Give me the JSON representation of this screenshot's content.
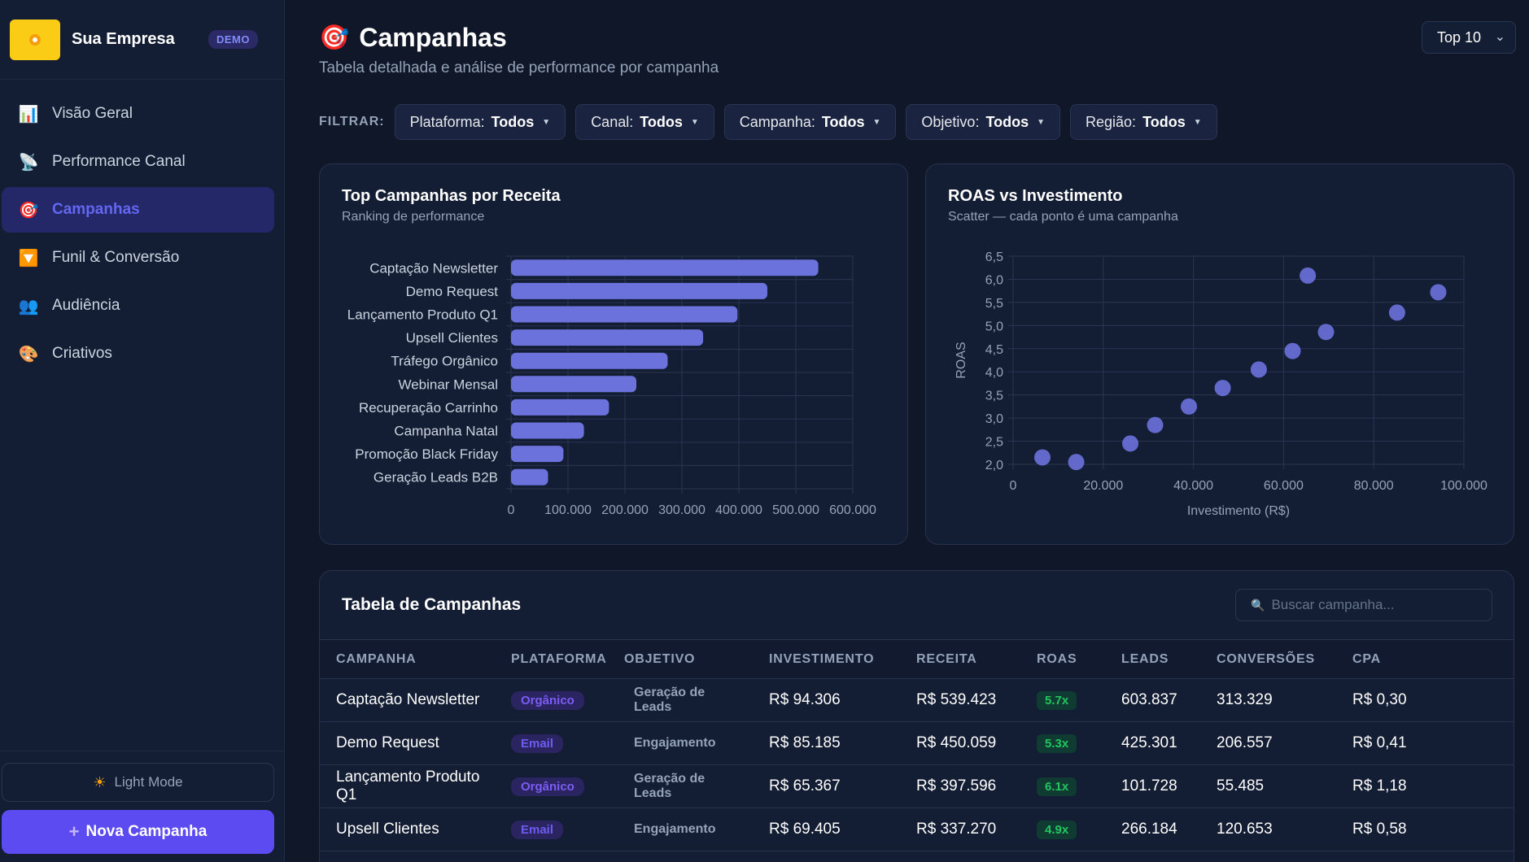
{
  "sidebar": {
    "brand_name": "Sua Empresa",
    "brand_badge": "DEMO",
    "items": [
      {
        "icon": "📊",
        "label": "Visão Geral"
      },
      {
        "icon": "📡",
        "label": "Performance Canal"
      },
      {
        "icon": "🎯",
        "label": "Campanhas"
      },
      {
        "icon": "🔽",
        "label": "Funil & Conversão"
      },
      {
        "icon": "👥",
        "label": "Audiência"
      },
      {
        "icon": "🎨",
        "label": "Criativos"
      }
    ],
    "light_mode_label": "Light Mode",
    "new_campaign_label": "Nova Campanha"
  },
  "header": {
    "icon": "🎯",
    "title": "Campanhas",
    "subtitle": "Tabela detalhada e análise de performance por campanha",
    "top_select": "Top 10"
  },
  "filters": {
    "label": "FILTRAR:",
    "chips": [
      {
        "key": "Plataforma:",
        "value": "Todos"
      },
      {
        "key": "Canal:",
        "value": "Todos"
      },
      {
        "key": "Campanha:",
        "value": "Todos"
      },
      {
        "key": "Objetivo:",
        "value": "Todos"
      },
      {
        "key": "Região:",
        "value": "Todos"
      }
    ]
  },
  "chart_data": [
    {
      "type": "bar",
      "orientation": "horizontal",
      "title": "Top Campanhas por Receita",
      "subtitle": "Ranking de performance",
      "categories": [
        "Captação Newsletter",
        "Demo Request",
        "Lançamento Produto Q1",
        "Upsell Clientes",
        "Tráfego Orgânico",
        "Webinar Mensal",
        "Recuperação Carrinho",
        "Campanha Natal",
        "Promoção Black Friday",
        "Geração Leads B2B"
      ],
      "values": [
        539423,
        450059,
        397596,
        337270,
        275000,
        220000,
        172000,
        128000,
        92000,
        65000
      ],
      "xlim": [
        0,
        600000
      ],
      "xticks": [
        "0",
        "100.000",
        "200.000",
        "300.000",
        "400.000",
        "500.000",
        "600.000"
      ],
      "color": "#6b72dc",
      "grid": true
    },
    {
      "type": "scatter",
      "title": "ROAS vs Investimento",
      "subtitle": "Scatter — cada ponto é uma campanha",
      "xlabel": "Investimento (R$)",
      "ylabel": "ROAS",
      "xlim": [
        0,
        100000
      ],
      "ylim": [
        2.0,
        6.5
      ],
      "xticks": [
        "0",
        "20.000",
        "40.000",
        "60.000",
        "80.000",
        "100.000"
      ],
      "yticks": [
        "2,0",
        "2,5",
        "3,0",
        "3,5",
        "4,0",
        "4,5",
        "5,0",
        "5,5",
        "6,0",
        "6,5"
      ],
      "points": [
        {
          "x": 6500,
          "y": 2.15
        },
        {
          "x": 14000,
          "y": 2.05
        },
        {
          "x": 26000,
          "y": 2.45
        },
        {
          "x": 31500,
          "y": 2.85
        },
        {
          "x": 39000,
          "y": 3.25
        },
        {
          "x": 46500,
          "y": 3.65
        },
        {
          "x": 54500,
          "y": 4.05
        },
        {
          "x": 62000,
          "y": 4.45
        },
        {
          "x": 65367,
          "y": 6.08
        },
        {
          "x": 69405,
          "y": 4.86
        },
        {
          "x": 85185,
          "y": 5.28
        },
        {
          "x": 94306,
          "y": 5.72
        }
      ],
      "color": "#6b72dc",
      "grid": true
    }
  ],
  "table": {
    "title": "Tabela de Campanhas",
    "search_placeholder": "Buscar campanha...",
    "columns": [
      "CAMPANHA",
      "PLATAFORMA",
      "OBJETIVO",
      "INVESTIMENTO",
      "RECEITA",
      "ROAS",
      "LEADS",
      "CONVERSÕES",
      "CPA"
    ],
    "rows": [
      {
        "campanha": "Captação Newsletter",
        "plataforma": "Orgânico",
        "objetivo": "Geração de Leads",
        "investimento": "R$ 94.306",
        "receita": "R$ 539.423",
        "roas": "5.7x",
        "leads": "603.837",
        "conversoes": "313.329",
        "cpa": "R$ 0,30"
      },
      {
        "campanha": "Demo Request",
        "plataforma": "Email",
        "objetivo": "Engajamento",
        "investimento": "R$ 85.185",
        "receita": "R$ 450.059",
        "roas": "5.3x",
        "leads": "425.301",
        "conversoes": "206.557",
        "cpa": "R$ 0,41"
      },
      {
        "campanha": "Lançamento Produto Q1",
        "plataforma": "Orgânico",
        "objetivo": "Geração de Leads",
        "investimento": "R$ 65.367",
        "receita": "R$ 397.596",
        "roas": "6.1x",
        "leads": "101.728",
        "conversoes": "55.485",
        "cpa": "R$ 1,18"
      },
      {
        "campanha": "Upsell Clientes",
        "plataforma": "Email",
        "objetivo": "Engajamento",
        "investimento": "R$ 69.405",
        "receita": "R$ 337.270",
        "roas": "4.9x",
        "leads": "266.184",
        "conversoes": "120.653",
        "cpa": "R$ 0,58"
      }
    ]
  }
}
